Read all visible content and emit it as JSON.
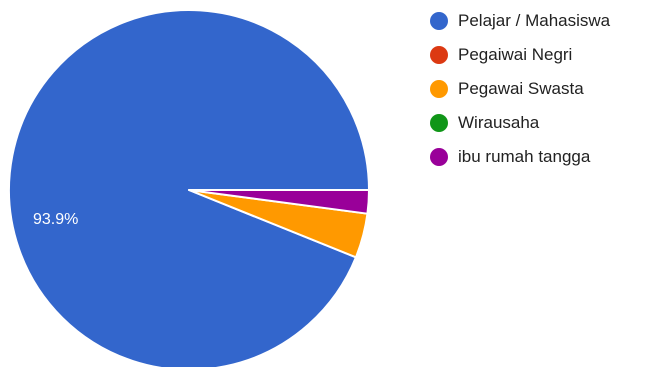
{
  "chart_data": {
    "type": "pie",
    "title": "",
    "categories": [
      "Pelajar / Mahasiswa",
      "Pegaiwai Negri",
      "Pegawai Swasta",
      "Wirausaha",
      "ibu rumah tangga"
    ],
    "values": [
      93.9,
      0,
      4.0,
      0,
      2.1
    ],
    "labels": [
      "93.9%",
      "",
      "",
      "",
      ""
    ],
    "colors": [
      "#3366cc",
      "#dc3912",
      "#ff9900",
      "#109618",
      "#990099"
    ],
    "legend_position": "right"
  }
}
